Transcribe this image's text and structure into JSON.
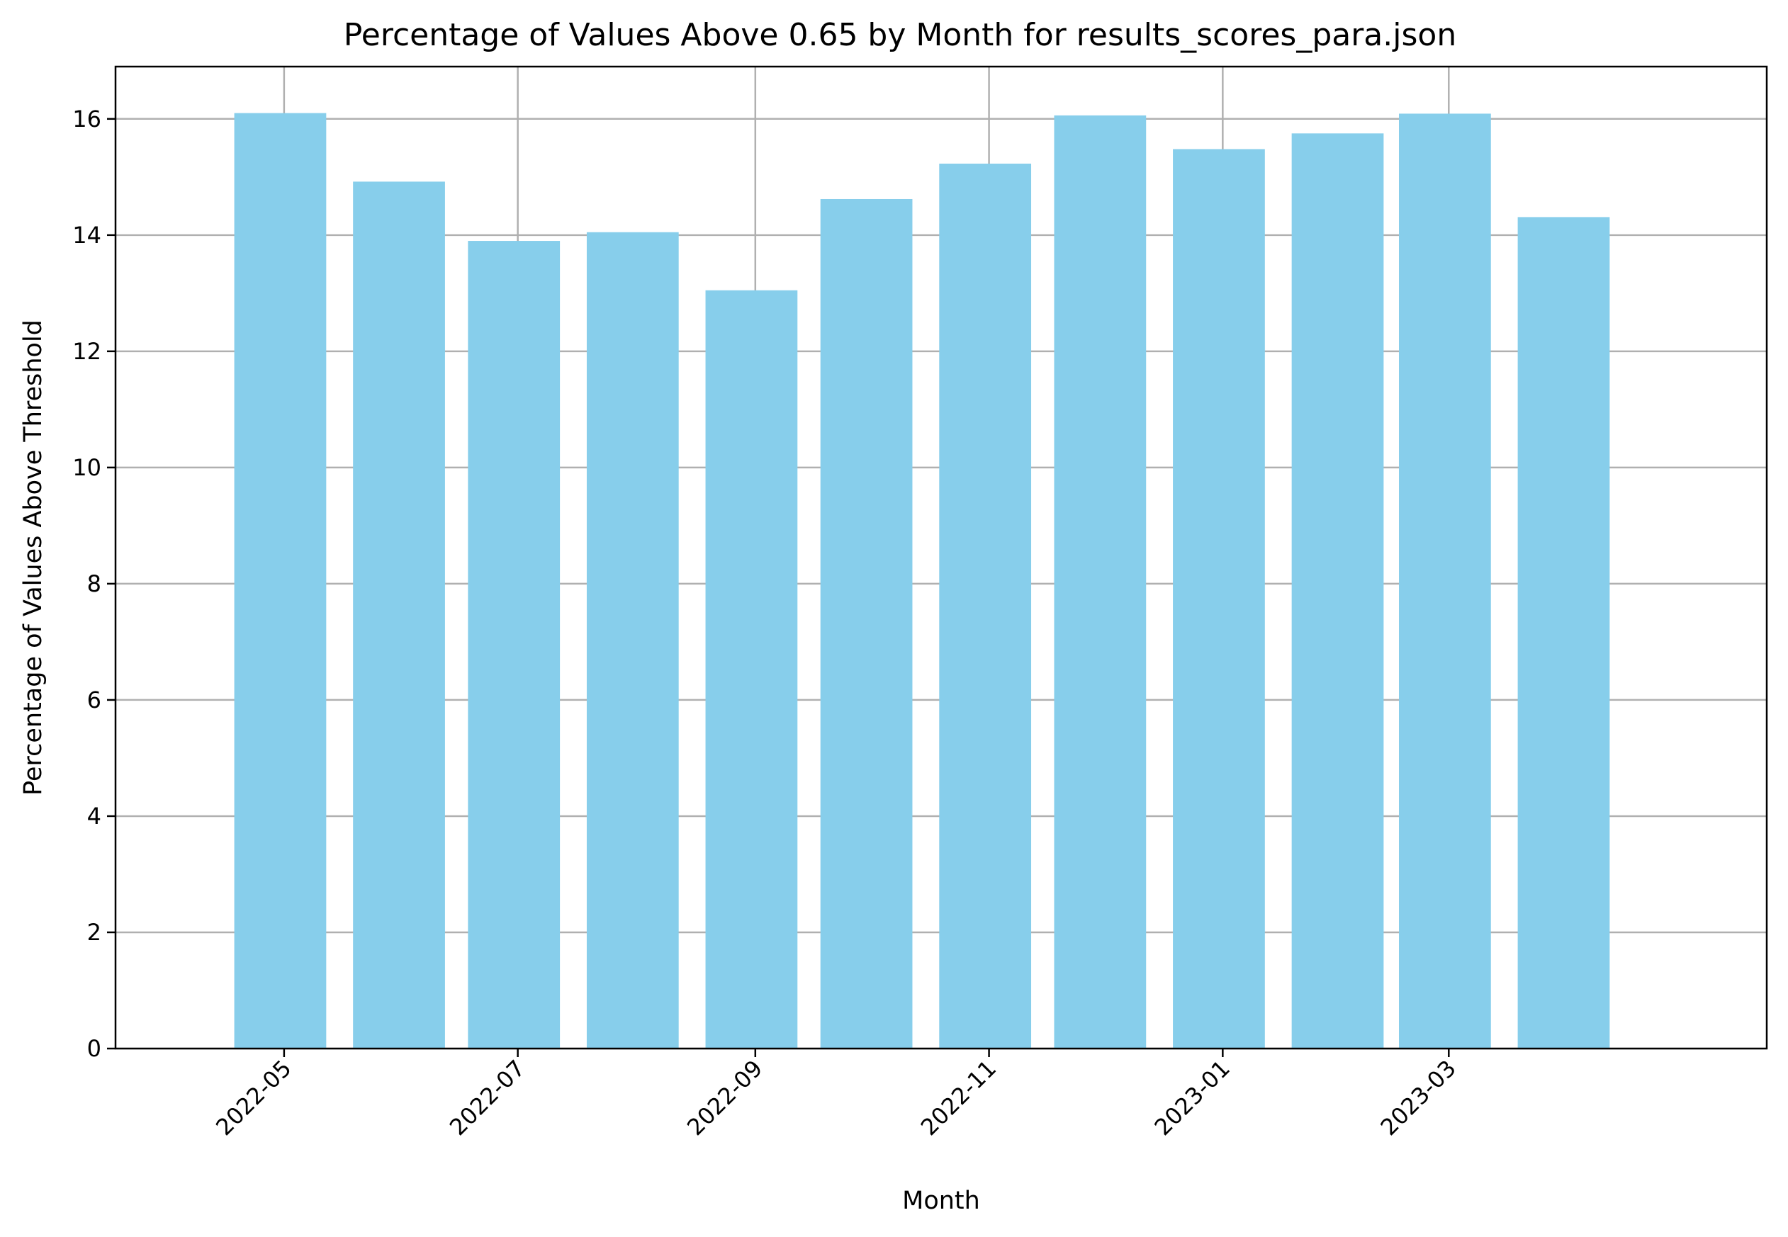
{
  "chart_data": {
    "type": "bar",
    "title": "Percentage of Values Above 0.65 by Month for results_scores_para.json",
    "xlabel": "Month",
    "ylabel": "Percentage of Values Above Threshold",
    "ylim": [
      0,
      16.9
    ],
    "yticks": [
      0,
      2,
      4,
      6,
      8,
      10,
      12,
      14,
      16
    ],
    "xlim": [
      "2022-03-18",
      "2023-05-23"
    ],
    "xticks": [
      "2022-05",
      "2022-07",
      "2022-09",
      "2022-11",
      "2023-01",
      "2023-03"
    ],
    "grid": true,
    "bar_color": "#87ceeb",
    "categories": [
      "2022-04-30",
      "2022-05-31",
      "2022-06-30",
      "2022-07-31",
      "2022-08-31",
      "2022-09-30",
      "2022-10-31",
      "2022-11-30",
      "2022-12-31",
      "2023-01-31",
      "2023-02-28",
      "2023-03-31"
    ],
    "values": [
      16.1,
      14.92,
      13.9,
      14.05,
      13.05,
      14.62,
      15.23,
      16.06,
      15.48,
      15.75,
      16.09,
      14.31
    ]
  }
}
